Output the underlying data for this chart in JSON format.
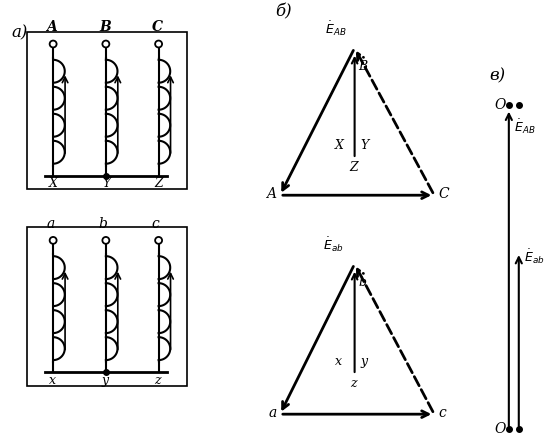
{
  "fig_width": 5.55,
  "fig_height": 4.46,
  "bg_color": "#ffffff",
  "primary_labels_top": [
    "A",
    "B",
    "C"
  ],
  "primary_labels_bot": [
    "X",
    "Y",
    "Z"
  ],
  "secondary_labels_top": [
    "a",
    "b",
    "c"
  ],
  "secondary_labels_bot": [
    "x",
    "y",
    "z"
  ],
  "label_a": "а)",
  "label_b": "б)",
  "label_v": "в)"
}
